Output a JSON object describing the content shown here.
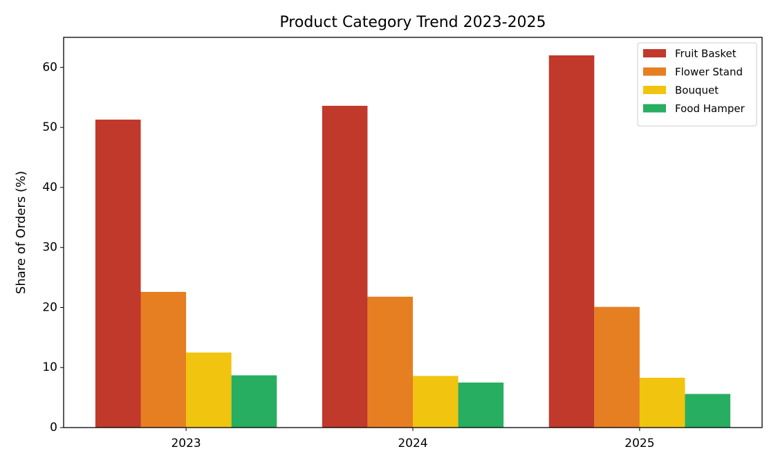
{
  "chart_data": {
    "type": "bar",
    "title": "Product Category Trend 2023-2025",
    "y_label": "Share of Orders (%)",
    "categories": [
      "2023",
      "2024",
      "2025"
    ],
    "series": [
      {
        "name": "Fruit Basket",
        "color": "#c0392b",
        "values": [
          51.3,
          53.6,
          62.0
        ]
      },
      {
        "name": "Flower Stand",
        "color": "#e67e22",
        "values": [
          22.6,
          21.8,
          20.1
        ]
      },
      {
        "name": "Bouquet",
        "color": "#f1c40f",
        "values": [
          12.5,
          8.6,
          8.3
        ]
      },
      {
        "name": "Food Hamper",
        "color": "#27ae60",
        "values": [
          8.7,
          7.5,
          5.6
        ]
      }
    ],
    "ylim": [
      0,
      65
    ],
    "yticks": [
      0,
      10,
      20,
      30,
      40,
      50,
      60
    ],
    "grid": false,
    "legend": "upper right"
  }
}
